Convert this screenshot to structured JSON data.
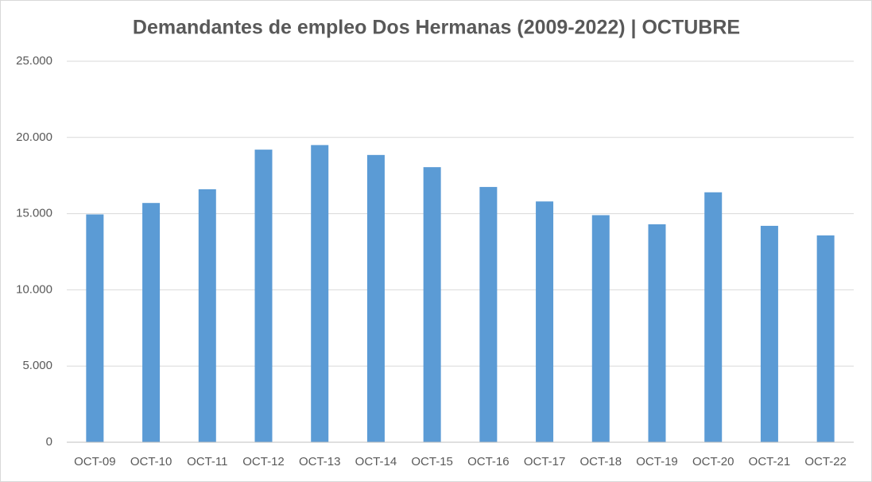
{
  "chart_data": {
    "type": "bar",
    "title": "Demandantes de empleo Dos Hermanas (2009-2022) | OCTUBRE",
    "categories": [
      "OCT-09",
      "OCT-10",
      "OCT-11",
      "OCT-12",
      "OCT-13",
      "OCT-14",
      "OCT-15",
      "OCT-16",
      "OCT-17",
      "OCT-18",
      "OCT-19",
      "OCT-20",
      "OCT-21",
      "OCT-22"
    ],
    "values": [
      14950,
      15700,
      16600,
      19200,
      19500,
      18850,
      18050,
      16750,
      15800,
      14900,
      14300,
      16400,
      14200,
      13570
    ],
    "color": "#5b9bd5",
    "ylim": [
      0,
      25000
    ],
    "yticks": [
      0,
      {
        "value": 5000,
        "label": "5.000"
      },
      {
        "value": 10000,
        "label": "10.000"
      },
      {
        "value": 15000,
        "label": "15.000"
      },
      {
        "value": 20000,
        "label": "20.000"
      },
      {
        "value": 25000,
        "label": "25.000"
      }
    ],
    "grid": true
  }
}
